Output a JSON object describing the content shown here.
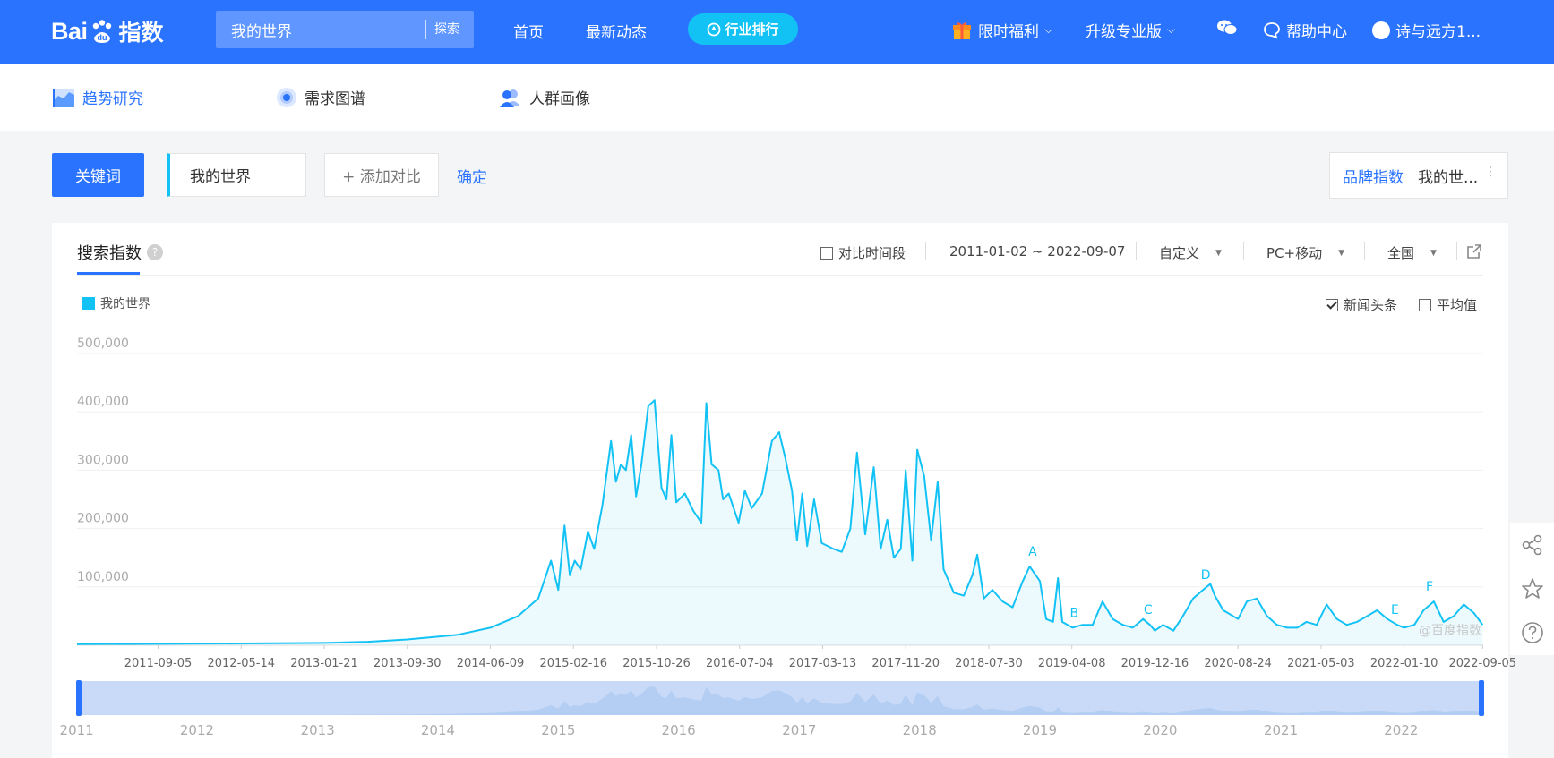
{
  "header": {
    "logo_text_bai": "Bai",
    "logo_text_du": "du",
    "logo_text_zhishu": "指数",
    "search_value": "我的世界",
    "search_button": "探索",
    "nav_home": "首页",
    "nav_news": "最新动态",
    "nav_rank": "行业排行",
    "welfare": "限时福利",
    "upgrade": "升级专业版",
    "help": "帮助中心",
    "user": "诗与远方1..."
  },
  "subnav": {
    "trend": "趋势研究",
    "demand": "需求图谱",
    "crowd": "人群画像"
  },
  "keyword_row": {
    "keyword_button": "关键词",
    "keyword_value": "我的世界",
    "add_compare": "+ 添加对比",
    "confirm": "确定",
    "brand_label": "品牌指数",
    "brand_value": "我的世..."
  },
  "card": {
    "tab_title": "搜索指数",
    "help_mark": "?",
    "compare_period": "对比时间段",
    "date_range": "2011-01-02 ~ 2022-09-07",
    "custom": "自定义",
    "device": "PC+移动",
    "region": "全国",
    "news_headline": "新闻头条",
    "news_checked": true,
    "average": "平均值",
    "average_checked": false,
    "watermark": "@百度指数"
  },
  "colors": {
    "brand_blue": "#2a73ff",
    "series": "#13c2f5",
    "rank_btn": "#13c2f5"
  },
  "chart_data": {
    "type": "area",
    "legend": [
      "我的世界"
    ],
    "ylim": [
      0,
      500000
    ],
    "y_ticks": [
      "500,000",
      "400,000",
      "300,000",
      "200,000",
      "100,000"
    ],
    "x_ticks": [
      "2011-09-05",
      "2012-05-14",
      "2013-01-21",
      "2013-09-30",
      "2014-06-09",
      "2015-02-16",
      "2015-10-26",
      "2016-07-04",
      "2017-03-13",
      "2017-11-20",
      "2018-07-30",
      "2019-04-08",
      "2019-12-16",
      "2020-08-24",
      "2021-05-03",
      "2022-01-10",
      "2022-09-05"
    ],
    "grid": true,
    "annotations": [
      {
        "label": "A",
        "date": "2018-12-10"
      },
      {
        "label": "B",
        "date": "2019-04-15"
      },
      {
        "label": "C",
        "date": "2019-11-25"
      },
      {
        "label": "D",
        "date": "2020-05-18"
      },
      {
        "label": "E",
        "date": "2021-12-13"
      },
      {
        "label": "F",
        "date": "2022-03-28"
      }
    ],
    "series": [
      {
        "name": "我的世界",
        "points": [
          [
            "2011-01-02",
            2000
          ],
          [
            "2011-09-05",
            2500
          ],
          [
            "2012-05-14",
            3000
          ],
          [
            "2013-01-21",
            4000
          ],
          [
            "2013-06-01",
            6000
          ],
          [
            "2013-09-30",
            10000
          ],
          [
            "2014-03-01",
            18000
          ],
          [
            "2014-06-09",
            30000
          ],
          [
            "2014-09-01",
            50000
          ],
          [
            "2014-11-01",
            80000
          ],
          [
            "2014-12-10",
            145000
          ],
          [
            "2015-01-01",
            95000
          ],
          [
            "2015-01-20",
            205000
          ],
          [
            "2015-02-05",
            120000
          ],
          [
            "2015-02-20",
            145000
          ],
          [
            "2015-03-10",
            130000
          ],
          [
            "2015-04-01",
            195000
          ],
          [
            "2015-04-20",
            165000
          ],
          [
            "2015-05-15",
            240000
          ],
          [
            "2015-06-10",
            350000
          ],
          [
            "2015-06-25",
            280000
          ],
          [
            "2015-07-10",
            310000
          ],
          [
            "2015-07-25",
            300000
          ],
          [
            "2015-08-10",
            360000
          ],
          [
            "2015-08-25",
            255000
          ],
          [
            "2015-09-10",
            310000
          ],
          [
            "2015-10-01",
            410000
          ],
          [
            "2015-10-20",
            420000
          ],
          [
            "2015-11-10",
            270000
          ],
          [
            "2015-11-25",
            250000
          ],
          [
            "2015-12-10",
            360000
          ],
          [
            "2015-12-25",
            245000
          ],
          [
            "2016-01-20",
            260000
          ],
          [
            "2016-02-15",
            230000
          ],
          [
            "2016-03-10",
            210000
          ],
          [
            "2016-03-25",
            415000
          ],
          [
            "2016-04-10",
            310000
          ],
          [
            "2016-05-01",
            300000
          ],
          [
            "2016-05-15",
            250000
          ],
          [
            "2016-06-01",
            260000
          ],
          [
            "2016-07-01",
            210000
          ],
          [
            "2016-07-20",
            265000
          ],
          [
            "2016-08-10",
            235000
          ],
          [
            "2016-09-10",
            260000
          ],
          [
            "2016-10-10",
            350000
          ],
          [
            "2016-11-01",
            365000
          ],
          [
            "2016-11-20",
            320000
          ],
          [
            "2016-12-10",
            265000
          ],
          [
            "2016-12-25",
            180000
          ],
          [
            "2017-01-10",
            260000
          ],
          [
            "2017-01-25",
            170000
          ],
          [
            "2017-02-15",
            250000
          ],
          [
            "2017-03-10",
            175000
          ],
          [
            "2017-04-15",
            165000
          ],
          [
            "2017-05-10",
            160000
          ],
          [
            "2017-06-05",
            200000
          ],
          [
            "2017-06-25",
            330000
          ],
          [
            "2017-07-20",
            190000
          ],
          [
            "2017-08-15",
            305000
          ],
          [
            "2017-09-05",
            165000
          ],
          [
            "2017-09-25",
            215000
          ],
          [
            "2017-10-15",
            150000
          ],
          [
            "2017-11-05",
            165000
          ],
          [
            "2017-11-20",
            300000
          ],
          [
            "2017-12-10",
            145000
          ],
          [
            "2017-12-25",
            335000
          ],
          [
            "2018-01-15",
            290000
          ],
          [
            "2018-02-05",
            180000
          ],
          [
            "2018-02-25",
            280000
          ],
          [
            "2018-03-15",
            130000
          ],
          [
            "2018-04-15",
            90000
          ],
          [
            "2018-05-15",
            85000
          ],
          [
            "2018-06-10",
            120000
          ],
          [
            "2018-06-25",
            155000
          ],
          [
            "2018-07-15",
            80000
          ],
          [
            "2018-08-10",
            95000
          ],
          [
            "2018-09-10",
            75000
          ],
          [
            "2018-10-10",
            65000
          ],
          [
            "2018-11-10",
            110000
          ],
          [
            "2018-12-01",
            135000
          ],
          [
            "2019-01-01",
            110000
          ],
          [
            "2019-01-20",
            45000
          ],
          [
            "2019-02-10",
            40000
          ],
          [
            "2019-02-25",
            115000
          ],
          [
            "2019-03-10",
            40000
          ],
          [
            "2019-04-10",
            30000
          ],
          [
            "2019-05-10",
            35000
          ],
          [
            "2019-06-10",
            35000
          ],
          [
            "2019-07-10",
            75000
          ],
          [
            "2019-08-10",
            45000
          ],
          [
            "2019-09-10",
            35000
          ],
          [
            "2019-10-10",
            30000
          ],
          [
            "2019-11-10",
            45000
          ],
          [
            "2019-12-01",
            35000
          ],
          [
            "2019-12-16",
            25000
          ],
          [
            "2020-01-10",
            35000
          ],
          [
            "2020-02-10",
            25000
          ],
          [
            "2020-03-10",
            50000
          ],
          [
            "2020-04-10",
            80000
          ],
          [
            "2020-05-10",
            95000
          ],
          [
            "2020-06-01",
            105000
          ],
          [
            "2020-06-15",
            85000
          ],
          [
            "2020-07-10",
            60000
          ],
          [
            "2020-08-24",
            45000
          ],
          [
            "2020-09-20",
            75000
          ],
          [
            "2020-10-20",
            80000
          ],
          [
            "2020-11-20",
            50000
          ],
          [
            "2020-12-20",
            35000
          ],
          [
            "2021-01-20",
            30000
          ],
          [
            "2021-02-20",
            30000
          ],
          [
            "2021-03-20",
            40000
          ],
          [
            "2021-04-20",
            35000
          ],
          [
            "2021-05-20",
            70000
          ],
          [
            "2021-06-20",
            45000
          ],
          [
            "2021-07-20",
            35000
          ],
          [
            "2021-08-20",
            40000
          ],
          [
            "2021-09-20",
            50000
          ],
          [
            "2021-10-20",
            60000
          ],
          [
            "2021-11-20",
            45000
          ],
          [
            "2021-12-20",
            35000
          ],
          [
            "2022-01-10",
            30000
          ],
          [
            "2022-02-10",
            35000
          ],
          [
            "2022-03-10",
            60000
          ],
          [
            "2022-04-10",
            75000
          ],
          [
            "2022-05-10",
            40000
          ],
          [
            "2022-06-10",
            50000
          ],
          [
            "2022-07-10",
            70000
          ],
          [
            "2022-08-10",
            55000
          ],
          [
            "2022-09-05",
            35000
          ]
        ]
      }
    ],
    "brush_years": [
      "2011",
      "2012",
      "2013",
      "2014",
      "2015",
      "2016",
      "2017",
      "2018",
      "2019",
      "2020",
      "2021",
      "2022"
    ]
  }
}
